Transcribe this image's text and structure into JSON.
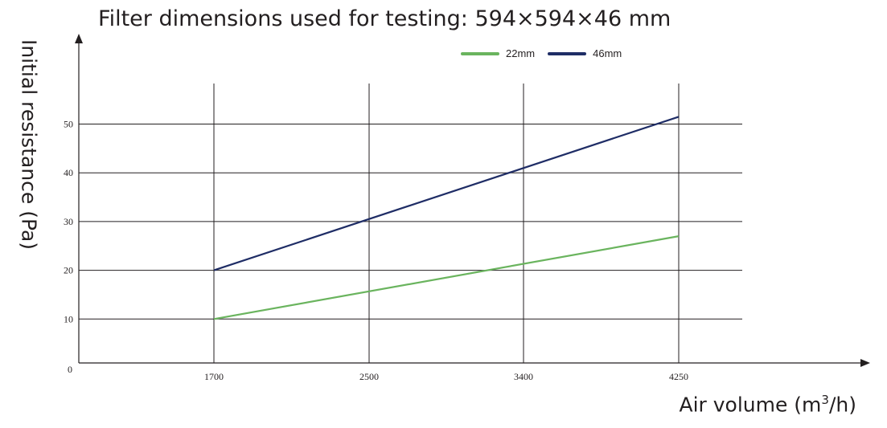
{
  "chart_data": {
    "type": "line",
    "title": "Filter dimensions used for testing: 594×594×46 mm",
    "xlabel_main": "Air volume (m",
    "xlabel_sup": "3",
    "xlabel_end": "/h)",
    "ylabel": "Initial resistance (Pa)",
    "categories": [
      "1700",
      "2500",
      "3400",
      "4250"
    ],
    "origin_label": "0",
    "y_ticks": [
      "10",
      "20",
      "30",
      "40",
      "50"
    ],
    "ylim": [
      0,
      60
    ],
    "grid": true,
    "legend_position": "top-right",
    "series": [
      {
        "name": "22mm",
        "color": "#6ab45e",
        "points": [
          [
            1700,
            10
          ],
          [
            4250,
            27
          ]
        ]
      },
      {
        "name": "46mm",
        "color": "#1f2d66",
        "points": [
          [
            1700,
            20
          ],
          [
            4250,
            51.5
          ]
        ]
      }
    ]
  }
}
